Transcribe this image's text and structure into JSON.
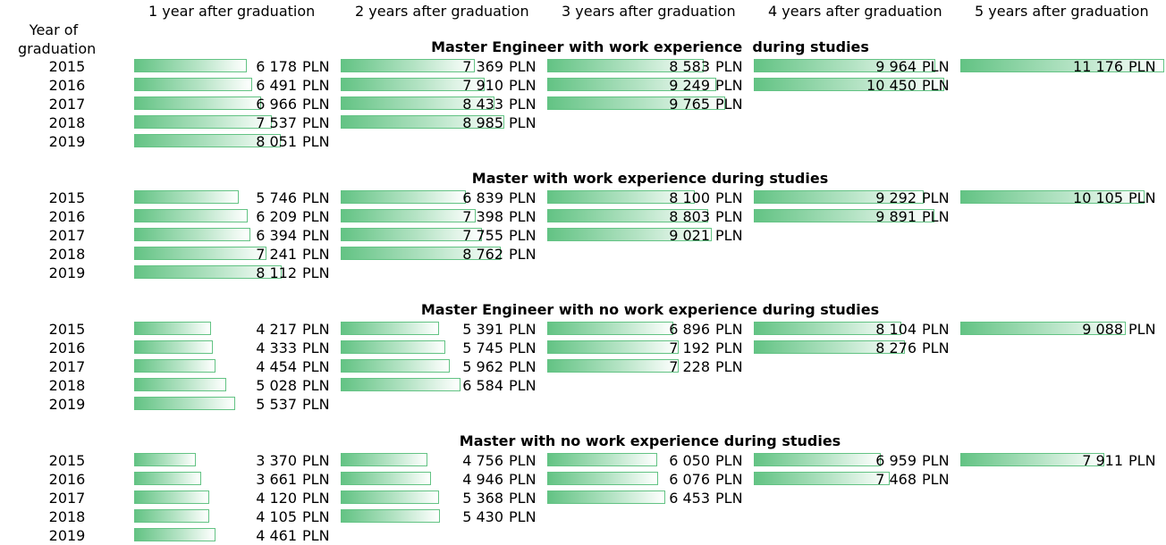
{
  "chart_data": {
    "type": "table",
    "year_header": "Year of graduation",
    "columns": [
      "1 year after graduation",
      "2 years after graduation",
      "3 years after graduation",
      "4 years after graduation",
      "5 years after graduation"
    ],
    "unit": "PLN",
    "bar_scale_max": 11176,
    "sections": [
      {
        "title": "Master Engineer with work experience  during studies",
        "rows": [
          {
            "year": "2015",
            "values": [
              6178,
              7369,
              8583,
              9964,
              11176
            ],
            "labels": [
              "6 178",
              "7 369",
              "8 583",
              "9 964",
              "11 176"
            ]
          },
          {
            "year": "2016",
            "values": [
              6491,
              7910,
              9249,
              10450
            ],
            "labels": [
              "6 491",
              "7 910",
              "9 249",
              "10 450"
            ]
          },
          {
            "year": "2017",
            "values": [
              6966,
              8433,
              9765
            ],
            "labels": [
              "6 966",
              "8 433",
              "9 765"
            ]
          },
          {
            "year": "2018",
            "values": [
              7537,
              8985
            ],
            "labels": [
              "7 537",
              "8 985"
            ]
          },
          {
            "year": "2019",
            "values": [
              8051
            ],
            "labels": [
              "8 051"
            ]
          }
        ]
      },
      {
        "title": "Master with work experience during studies",
        "rows": [
          {
            "year": "2015",
            "values": [
              5746,
              6839,
              8100,
              9292,
              10105
            ],
            "labels": [
              "5 746",
              "6 839",
              "8 100",
              "9 292",
              "10 105"
            ]
          },
          {
            "year": "2016",
            "values": [
              6209,
              7398,
              8803,
              9891
            ],
            "labels": [
              "6 209",
              "7 398",
              "8 803",
              "9 891"
            ]
          },
          {
            "year": "2017",
            "values": [
              6394,
              7755,
              9021
            ],
            "labels": [
              "6 394",
              "7 755",
              "9 021"
            ]
          },
          {
            "year": "2018",
            "values": [
              7241,
              8762
            ],
            "labels": [
              "7 241",
              "8 762"
            ]
          },
          {
            "year": "2019",
            "values": [
              8112
            ],
            "labels": [
              "8 112"
            ]
          }
        ]
      },
      {
        "title": "Master Engineer with no work experience during studies",
        "rows": [
          {
            "year": "2015",
            "values": [
              4217,
              5391,
              6896,
              8104,
              9088
            ],
            "labels": [
              "4 217",
              "5 391",
              "6 896",
              "8 104",
              "9 088"
            ]
          },
          {
            "year": "2016",
            "values": [
              4333,
              5745,
              7192,
              8276
            ],
            "labels": [
              "4 333",
              "5 745",
              "7 192",
              "8 276"
            ]
          },
          {
            "year": "2017",
            "values": [
              4454,
              5962,
              7228
            ],
            "labels": [
              "4 454",
              "5 962",
              "7 228"
            ]
          },
          {
            "year": "2018",
            "values": [
              5028,
              6584
            ],
            "labels": [
              "5 028",
              "6 584"
            ]
          },
          {
            "year": "2019",
            "values": [
              5537
            ],
            "labels": [
              "5 537"
            ]
          }
        ]
      },
      {
        "title": "Master with no work experience during studies",
        "rows": [
          {
            "year": "2015",
            "values": [
              3370,
              4756,
              6050,
              6959,
              7911
            ],
            "labels": [
              "3 370",
              "4 756",
              "6 050",
              "6 959",
              "7 911"
            ]
          },
          {
            "year": "2016",
            "values": [
              3661,
              4946,
              6076,
              7468
            ],
            "labels": [
              "3 661",
              "4 946",
              "6 076",
              "7 468"
            ]
          },
          {
            "year": "2017",
            "values": [
              4120,
              5368,
              6453
            ],
            "labels": [
              "4 120",
              "5 368",
              "6 453"
            ]
          },
          {
            "year": "2018",
            "values": [
              4105,
              5430
            ],
            "labels": [
              "4 105",
              "5 430"
            ]
          },
          {
            "year": "2019",
            "values": [
              4461
            ],
            "labels": [
              "4 461"
            ]
          }
        ]
      }
    ],
    "bar_color": "#63c384"
  }
}
